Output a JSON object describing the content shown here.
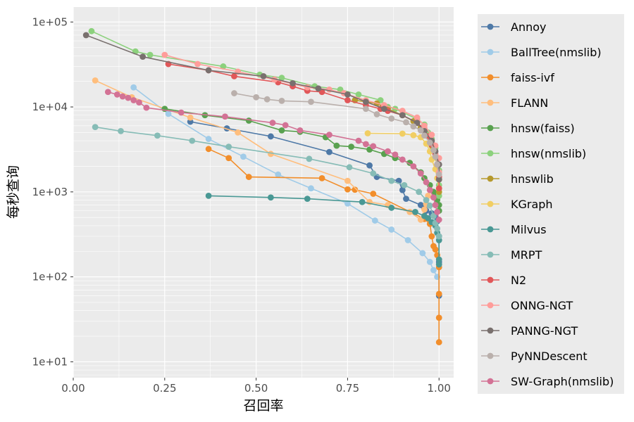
{
  "chart_data": {
    "type": "line",
    "title": "",
    "xlabel": "召回率",
    "ylabel": "每秒查询",
    "xlim": [
      0.0,
      1.04
    ],
    "ylim": [
      6.5,
      150000
    ],
    "yscale": "log",
    "xticks": [
      0.0,
      0.25,
      0.5,
      0.75,
      1.0
    ],
    "xtick_labels": [
      "0.00",
      "0.25",
      "0.50",
      "0.75",
      "1.00"
    ],
    "yticks": [
      10,
      100,
      1000,
      10000,
      100000
    ],
    "ytick_labels": [
      "1e+01",
      "1e+02",
      "1e+03",
      "1e+04",
      "1e+05"
    ],
    "grid": true,
    "legend_position": "right",
    "series": [
      {
        "name": "Annoy",
        "color": "#4e79a7",
        "points": [
          [
            0.32,
            6700
          ],
          [
            0.42,
            5600
          ],
          [
            0.54,
            4500
          ],
          [
            0.7,
            2950
          ],
          [
            0.81,
            2050
          ],
          [
            0.83,
            1500
          ],
          [
            0.89,
            1350
          ],
          [
            0.9,
            1050
          ],
          [
            0.91,
            830
          ],
          [
            0.95,
            700
          ],
          [
            0.96,
            640
          ],
          [
            0.965,
            600
          ],
          [
            0.98,
            560
          ],
          [
            0.99,
            520
          ],
          [
            0.995,
            450
          ],
          [
            1.0,
            300
          ],
          [
            1.0,
            150
          ],
          [
            1.0,
            60
          ]
        ]
      },
      {
        "name": "BallTree(nmslib)",
        "color": "#a0cbe8",
        "points": [
          [
            0.165,
            17000
          ],
          [
            0.26,
            8300
          ],
          [
            0.37,
            4200
          ],
          [
            0.465,
            2600
          ],
          [
            0.56,
            1600
          ],
          [
            0.65,
            1100
          ],
          [
            0.75,
            730
          ],
          [
            0.825,
            460
          ],
          [
            0.87,
            360
          ],
          [
            0.915,
            270
          ],
          [
            0.955,
            190
          ],
          [
            0.975,
            150
          ],
          [
            0.985,
            120
          ],
          [
            0.995,
            100
          ]
        ]
      },
      {
        "name": "faiss-ivf",
        "color": "#f28e2b",
        "points": [
          [
            0.37,
            3200
          ],
          [
            0.425,
            2500
          ],
          [
            0.48,
            1500
          ],
          [
            0.68,
            1450
          ],
          [
            0.75,
            1070
          ],
          [
            0.77,
            1060
          ],
          [
            0.82,
            950
          ],
          [
            0.96,
            480
          ],
          [
            0.975,
            420
          ],
          [
            0.98,
            300
          ],
          [
            0.985,
            230
          ],
          [
            0.99,
            210
          ],
          [
            0.995,
            180
          ],
          [
            1.0,
            130
          ],
          [
            1.0,
            63
          ],
          [
            1.0,
            33
          ],
          [
            1.0,
            17
          ]
        ]
      },
      {
        "name": "FLANN",
        "color": "#ffbe7d",
        "points": [
          [
            0.06,
            20500
          ],
          [
            0.16,
            13000
          ],
          [
            0.32,
            7500
          ],
          [
            0.45,
            5000
          ],
          [
            0.54,
            2800
          ],
          [
            0.75,
            1350
          ],
          [
            0.81,
            760
          ],
          [
            0.86,
            700
          ],
          [
            0.92,
            580
          ],
          [
            0.95,
            470
          ],
          [
            0.96,
            620
          ],
          [
            0.965,
            720
          ],
          [
            0.97,
            900
          ]
        ]
      },
      {
        "name": "hnsw(faiss)",
        "color": "#59a14f",
        "points": [
          [
            0.25,
            9500
          ],
          [
            0.36,
            8000
          ],
          [
            0.48,
            6900
          ],
          [
            0.57,
            5300
          ],
          [
            0.62,
            5100
          ],
          [
            0.69,
            4400
          ],
          [
            0.72,
            3500
          ],
          [
            0.76,
            3400
          ],
          [
            0.81,
            3150
          ],
          [
            0.85,
            2800
          ],
          [
            0.88,
            2500
          ],
          [
            0.92,
            2200
          ],
          [
            0.95,
            1700
          ],
          [
            0.96,
            1450
          ],
          [
            0.975,
            1200
          ],
          [
            0.985,
            1000
          ],
          [
            0.99,
            880
          ],
          [
            0.995,
            800
          ],
          [
            1.0,
            700
          ],
          [
            1.0,
            600
          ]
        ]
      },
      {
        "name": "hnsw(nmslib)",
        "color": "#8cd17d",
        "points": [
          [
            0.05,
            78000
          ],
          [
            0.17,
            45000
          ],
          [
            0.21,
            41000
          ],
          [
            0.41,
            30000
          ],
          [
            0.51,
            24000
          ],
          [
            0.57,
            22000
          ],
          [
            0.66,
            17500
          ],
          [
            0.73,
            16000
          ],
          [
            0.78,
            14000
          ],
          [
            0.84,
            12000
          ],
          [
            0.86,
            10000
          ],
          [
            0.88,
            9500
          ],
          [
            0.94,
            7200
          ],
          [
            0.96,
            6200
          ],
          [
            0.97,
            5000
          ],
          [
            0.98,
            4200
          ],
          [
            0.99,
            3300
          ],
          [
            0.995,
            2500
          ],
          [
            1.0,
            1800
          ],
          [
            1.0,
            1200
          ],
          [
            1.0,
            900
          ]
        ]
      },
      {
        "name": "hnswlib",
        "color": "#b6992d",
        "points": [
          [
            0.77,
            12000
          ],
          [
            0.83,
            11000
          ],
          [
            0.86,
            9500
          ],
          [
            0.9,
            8000
          ],
          [
            0.93,
            6800
          ],
          [
            0.95,
            5600
          ],
          [
            0.97,
            4500
          ],
          [
            0.98,
            3500
          ],
          [
            0.99,
            2600
          ],
          [
            0.995,
            2000
          ],
          [
            1.0,
            1400
          ],
          [
            1.0,
            1000
          ]
        ]
      },
      {
        "name": "KGraph",
        "color": "#f1ce63",
        "points": [
          [
            0.805,
            4900
          ],
          [
            0.9,
            4850
          ],
          [
            0.93,
            4650
          ],
          [
            0.95,
            4400
          ],
          [
            0.965,
            3700
          ],
          [
            0.975,
            3000
          ],
          [
            0.98,
            2400
          ],
          [
            0.99,
            1850
          ],
          [
            0.995,
            1450
          ],
          [
            1.0,
            1100
          ]
        ]
      },
      {
        "name": "Milvus",
        "color": "#499894",
        "points": [
          [
            0.37,
            900
          ],
          [
            0.54,
            860
          ],
          [
            0.64,
            830
          ],
          [
            0.79,
            760
          ],
          [
            0.87,
            650
          ],
          [
            0.935,
            580
          ],
          [
            0.96,
            520
          ],
          [
            0.97,
            490
          ],
          [
            0.98,
            440
          ],
          [
            0.99,
            400
          ],
          [
            0.995,
            330
          ],
          [
            1.0,
            270
          ],
          [
            1.0,
            160
          ],
          [
            1.0,
            140
          ]
        ]
      },
      {
        "name": "MRPT",
        "color": "#86bcb6",
        "points": [
          [
            0.06,
            5800
          ],
          [
            0.13,
            5200
          ],
          [
            0.23,
            4600
          ],
          [
            0.325,
            4000
          ],
          [
            0.425,
            3400
          ],
          [
            0.645,
            2450
          ],
          [
            0.755,
            1950
          ],
          [
            0.82,
            1650
          ],
          [
            0.87,
            1350
          ],
          [
            0.905,
            1200
          ],
          [
            0.945,
            1000
          ],
          [
            0.965,
            800
          ],
          [
            0.975,
            690
          ],
          [
            0.985,
            520
          ],
          [
            0.99,
            430
          ],
          [
            0.995,
            370
          ],
          [
            1.0,
            300
          ]
        ]
      },
      {
        "name": "N2",
        "color": "#e15759",
        "points": [
          [
            0.26,
            32000
          ],
          [
            0.37,
            27000
          ],
          [
            0.44,
            23000
          ],
          [
            0.56,
            19500
          ],
          [
            0.6,
            17500
          ],
          [
            0.64,
            15500
          ],
          [
            0.68,
            15000
          ],
          [
            0.75,
            12000
          ],
          [
            0.8,
            10500
          ],
          [
            0.84,
            9500
          ],
          [
            0.86,
            9000
          ],
          [
            0.9,
            8000
          ],
          [
            0.94,
            6500
          ],
          [
            0.96,
            5500
          ],
          [
            0.97,
            4500
          ],
          [
            0.98,
            3600
          ],
          [
            0.99,
            2800
          ],
          [
            0.995,
            2100
          ],
          [
            1.0,
            1500
          ],
          [
            1.0,
            1100
          ]
        ]
      },
      {
        "name": "ONNG-NGT",
        "color": "#ff9d9a",
        "points": [
          [
            0.25,
            41000
          ],
          [
            0.34,
            32000
          ],
          [
            0.45,
            26000
          ],
          [
            0.55,
            21000
          ],
          [
            0.64,
            17000
          ],
          [
            0.7,
            16000
          ],
          [
            0.74,
            14500
          ],
          [
            0.8,
            12000
          ],
          [
            0.85,
            10500
          ],
          [
            0.9,
            9000
          ],
          [
            0.94,
            7500
          ],
          [
            0.96,
            6000
          ],
          [
            0.98,
            4700
          ],
          [
            0.99,
            3500
          ],
          [
            1.0,
            2500
          ],
          [
            1.0,
            1700
          ]
        ]
      },
      {
        "name": "PANNG-NGT",
        "color": "#79706e",
        "points": [
          [
            0.035,
            70000
          ],
          [
            0.19,
            39000
          ],
          [
            0.37,
            27000
          ],
          [
            0.52,
            23000
          ],
          [
            0.6,
            19000
          ],
          [
            0.67,
            16500
          ],
          [
            0.75,
            14000
          ],
          [
            0.8,
            11500
          ],
          [
            0.85,
            9500
          ],
          [
            0.9,
            8000
          ],
          [
            0.94,
            6500
          ],
          [
            0.96,
            5200
          ],
          [
            0.98,
            4000
          ],
          [
            0.99,
            3000
          ],
          [
            1.0,
            2100
          ],
          [
            1.0,
            1400
          ]
        ]
      },
      {
        "name": "PyNNDescent",
        "color": "#bab0ac",
        "points": [
          [
            0.44,
            14500
          ],
          [
            0.5,
            13000
          ],
          [
            0.53,
            12300
          ],
          [
            0.57,
            11800
          ],
          [
            0.65,
            11500
          ],
          [
            0.8,
            9500
          ],
          [
            0.83,
            8200
          ],
          [
            0.87,
            7300
          ],
          [
            0.91,
            6600
          ],
          [
            0.93,
            5900
          ],
          [
            0.95,
            5300
          ],
          [
            0.96,
            4600
          ],
          [
            0.975,
            3800
          ],
          [
            0.985,
            3100
          ],
          [
            0.99,
            2600
          ],
          [
            0.995,
            2100
          ],
          [
            1.0,
            1600
          ]
        ]
      },
      {
        "name": "SW-Graph(nmslib)",
        "color": "#d37295",
        "points": [
          [
            0.095,
            15000
          ],
          [
            0.12,
            14000
          ],
          [
            0.135,
            13300
          ],
          [
            0.15,
            12800
          ],
          [
            0.165,
            12000
          ],
          [
            0.18,
            11300
          ],
          [
            0.2,
            9800
          ],
          [
            0.295,
            8600
          ],
          [
            0.415,
            7700
          ],
          [
            0.545,
            6500
          ],
          [
            0.58,
            6100
          ],
          [
            0.62,
            5300
          ],
          [
            0.7,
            4700
          ],
          [
            0.78,
            4000
          ],
          [
            0.8,
            3650
          ],
          [
            0.82,
            3450
          ],
          [
            0.86,
            3000
          ],
          [
            0.88,
            2750
          ],
          [
            0.9,
            2400
          ],
          [
            0.93,
            2000
          ],
          [
            0.95,
            1650
          ],
          [
            0.965,
            1300
          ],
          [
            0.975,
            1050
          ],
          [
            0.985,
            860
          ],
          [
            0.99,
            700
          ],
          [
            0.995,
            580
          ],
          [
            1.0,
            470
          ]
        ]
      }
    ]
  }
}
